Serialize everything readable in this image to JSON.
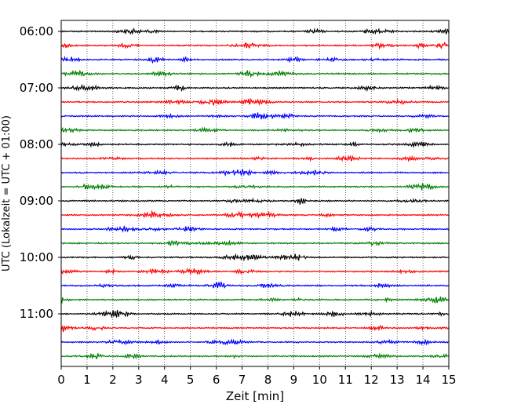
{
  "chart_data": {
    "type": "line",
    "title": "",
    "xlabel": "Zeit  [min]",
    "ylabel": "UTC (Lokalzeit = UTC + 01:00)",
    "xlim": [
      0,
      15
    ],
    "x_ticks": [
      "0",
      "1",
      "2",
      "3",
      "4",
      "5",
      "6",
      "7",
      "8",
      "9",
      "10",
      "11",
      "12",
      "13",
      "14",
      "15"
    ],
    "y_ticks": [
      "06:00",
      "07:00",
      "08:00",
      "09:00",
      "10:00",
      "11:00"
    ],
    "grid": "vertical dotted",
    "trace_minutes": 15,
    "color_cycle": [
      "#000000",
      "#ff0000",
      "#0000ff",
      "#008000"
    ],
    "series": [
      {
        "start": "06:00",
        "color": "#000000"
      },
      {
        "start": "06:15",
        "color": "#ff0000"
      },
      {
        "start": "06:30",
        "color": "#0000ff"
      },
      {
        "start": "06:45",
        "color": "#008000"
      },
      {
        "start": "07:00",
        "color": "#000000"
      },
      {
        "start": "07:15",
        "color": "#ff0000"
      },
      {
        "start": "07:30",
        "color": "#0000ff"
      },
      {
        "start": "07:45",
        "color": "#008000"
      },
      {
        "start": "08:00",
        "color": "#000000"
      },
      {
        "start": "08:15",
        "color": "#ff0000"
      },
      {
        "start": "08:30",
        "color": "#0000ff"
      },
      {
        "start": "08:45",
        "color": "#008000"
      },
      {
        "start": "09:00",
        "color": "#000000"
      },
      {
        "start": "09:15",
        "color": "#ff0000"
      },
      {
        "start": "09:30",
        "color": "#0000ff"
      },
      {
        "start": "09:45",
        "color": "#008000"
      },
      {
        "start": "10:00",
        "color": "#000000"
      },
      {
        "start": "10:15",
        "color": "#ff0000"
      },
      {
        "start": "10:30",
        "color": "#0000ff"
      },
      {
        "start": "10:45",
        "color": "#008000"
      },
      {
        "start": "11:00",
        "color": "#000000"
      },
      {
        "start": "11:15",
        "color": "#ff0000"
      },
      {
        "start": "11:30",
        "color": "#0000ff"
      },
      {
        "start": "11:45",
        "color": "#008000"
      }
    ]
  }
}
